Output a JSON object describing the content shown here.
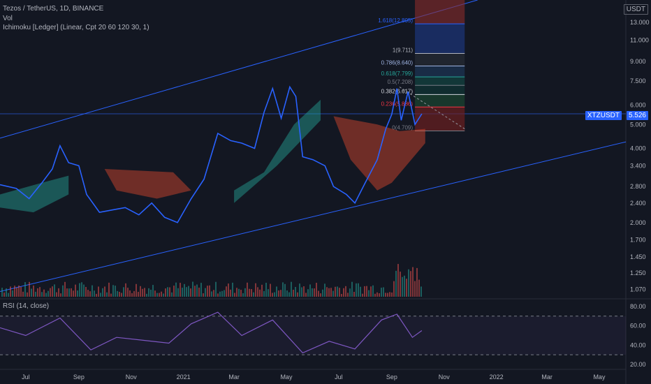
{
  "header": {
    "symbol_title": "Tezos / TetherUS, 1D, BINANCE",
    "vol_label": "Vol",
    "ichimoku_label": "Ichimoku [Ledger] (Linear, Cpt 20 60 120 30, 1)",
    "rsi_label": "RSI (14, close)"
  },
  "price_axis": {
    "currency_badge": "USDT",
    "ticks": [
      "13.000",
      "11.000",
      "9.000",
      "7.500",
      "6.000",
      "5.000",
      "4.000",
      "3.400",
      "2.800",
      "2.400",
      "2.000",
      "1.700",
      "1.450",
      "1.250",
      "1.070"
    ],
    "symbol_badge": "XTZUSDT",
    "last_price": "5.526"
  },
  "rsi_axis": {
    "ticks": [
      "80.00",
      "60.00",
      "40.00",
      "20.00"
    ],
    "upper": 70,
    "lower": 30
  },
  "time_axis": {
    "labels": [
      "Jul",
      "Sep",
      "Nov",
      "2021",
      "Mar",
      "May",
      "Jul",
      "Sep",
      "Nov",
      "2022",
      "Mar",
      "May"
    ]
  },
  "fib_levels": [
    {
      "label": "1.618(12.805)",
      "color": "#2962ff"
    },
    {
      "label": "1(9.711)",
      "color": "#b2b5be"
    },
    {
      "label": "0.786(8.640)",
      "color": "#9db2e0"
    },
    {
      "label": "0.618(7.799)",
      "color": "#26a69a"
    },
    {
      "label": "0.5(7.208)",
      "color": "#787b86"
    },
    {
      "label": "0.382(6.617)",
      "color": "#d1d4dc"
    },
    {
      "label": "0.236(5.886)",
      "color": "#f23645"
    },
    {
      "label": "0(4.709)",
      "color": "#787b86"
    }
  ],
  "colors": {
    "background": "#131722",
    "price_line": "#2962ff",
    "cloud_bull": "#26a69a",
    "cloud_bear": "#e04a2f",
    "rsi_line": "#7e57c2",
    "channel": "#2962ff"
  },
  "chart_data": {
    "type": "line",
    "y_scale": "log",
    "ylim": [
      1.0,
      16.0
    ],
    "x_range": [
      "2020-06-01",
      "2022-05-31"
    ],
    "series": [
      {
        "name": "XTZUSDT",
        "points": [
          [
            "2020-06-01",
            2.85
          ],
          [
            "2020-06-20",
            2.75
          ],
          [
            "2020-07-05",
            2.5
          ],
          [
            "2020-07-20",
            2.9
          ],
          [
            "2020-08-01",
            3.3
          ],
          [
            "2020-08-10",
            4.1
          ],
          [
            "2020-08-20",
            3.5
          ],
          [
            "2020-09-01",
            3.4
          ],
          [
            "2020-09-10",
            2.6
          ],
          [
            "2020-09-25",
            2.2
          ],
          [
            "2020-10-10",
            2.25
          ],
          [
            "2020-10-25",
            2.3
          ],
          [
            "2020-11-10",
            2.15
          ],
          [
            "2020-11-25",
            2.4
          ],
          [
            "2020-12-10",
            2.1
          ],
          [
            "2020-12-25",
            2.0
          ],
          [
            "2021-01-10",
            2.5
          ],
          [
            "2021-01-25",
            3.0
          ],
          [
            "2021-02-10",
            4.6
          ],
          [
            "2021-02-25",
            4.3
          ],
          [
            "2021-03-10",
            4.2
          ],
          [
            "2021-03-25",
            4.0
          ],
          [
            "2021-04-05",
            5.6
          ],
          [
            "2021-04-15",
            7.0
          ],
          [
            "2021-04-25",
            5.3
          ],
          [
            "2021-05-05",
            7.1
          ],
          [
            "2021-05-12",
            6.5
          ],
          [
            "2021-05-20",
            3.7
          ],
          [
            "2021-06-01",
            3.6
          ],
          [
            "2021-06-15",
            3.4
          ],
          [
            "2021-06-25",
            2.8
          ],
          [
            "2021-07-10",
            2.6
          ],
          [
            "2021-07-20",
            2.4
          ],
          [
            "2021-08-01",
            2.9
          ],
          [
            "2021-08-15",
            3.6
          ],
          [
            "2021-08-25",
            4.8
          ],
          [
            "2021-09-01",
            5.5
          ],
          [
            "2021-09-07",
            7.0
          ],
          [
            "2021-09-12",
            5.2
          ],
          [
            "2021-09-20",
            6.8
          ],
          [
            "2021-09-28",
            5.0
          ],
          [
            "2021-10-06",
            5.526
          ]
        ]
      },
      {
        "name": "RSI",
        "points": [
          [
            "2020-06-01",
            58
          ],
          [
            "2020-07-01",
            50
          ],
          [
            "2020-08-10",
            68
          ],
          [
            "2020-09-15",
            35
          ],
          [
            "2020-10-15",
            48
          ],
          [
            "2020-11-15",
            45
          ],
          [
            "2020-12-15",
            42
          ],
          [
            "2021-01-10",
            62
          ],
          [
            "2021-02-10",
            74
          ],
          [
            "2021-03-10",
            50
          ],
          [
            "2021-04-15",
            66
          ],
          [
            "2021-05-20",
            32
          ],
          [
            "2021-06-20",
            44
          ],
          [
            "2021-07-20",
            36
          ],
          [
            "2021-08-20",
            66
          ],
          [
            "2021-09-07",
            72
          ],
          [
            "2021-09-25",
            48
          ],
          [
            "2021-10-06",
            55
          ]
        ]
      }
    ]
  }
}
